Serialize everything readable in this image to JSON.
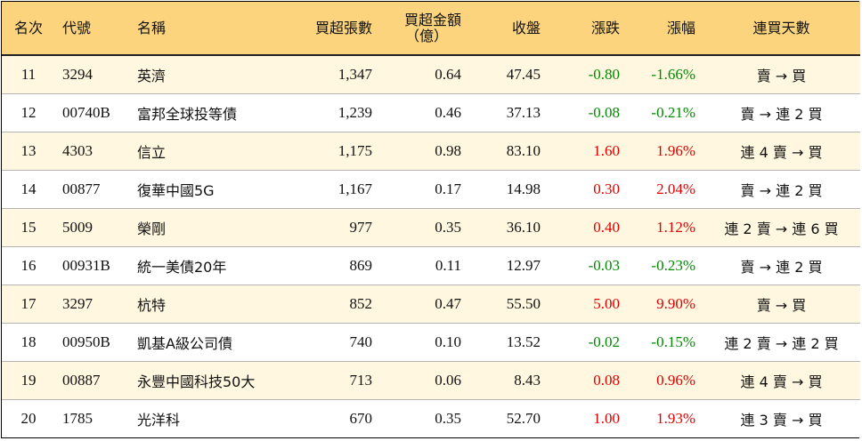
{
  "headers": {
    "rank": "名次",
    "code": "代號",
    "name": "名稱",
    "net_lots": "買超張數",
    "net_amount_l1": "買超金額",
    "net_amount_l2": "（億）",
    "close": "收盤",
    "change": "漲跌",
    "pct": "漲幅",
    "streak": "連買天數"
  },
  "colors": {
    "header_bg": "#fbd47d",
    "row_alt_bg": "#fff7df",
    "up": "#e00000",
    "down": "#008a00"
  },
  "rows": [
    {
      "rank": "11",
      "code": "3294",
      "name": "英濟",
      "lots": "1,347",
      "amount": "0.64",
      "close": "47.45",
      "change": "-0.80",
      "pct": "-1.66%",
      "dir": "neg",
      "streak": "賣 → 買"
    },
    {
      "rank": "12",
      "code": "00740B",
      "name": "富邦全球投等債",
      "lots": "1,239",
      "amount": "0.46",
      "close": "37.13",
      "change": "-0.08",
      "pct": "-0.21%",
      "dir": "neg",
      "streak": "賣 → 連 2 買"
    },
    {
      "rank": "13",
      "code": "4303",
      "name": "信立",
      "lots": "1,175",
      "amount": "0.98",
      "close": "83.10",
      "change": "1.60",
      "pct": "1.96%",
      "dir": "pos",
      "streak": "連 4 賣 → 買"
    },
    {
      "rank": "14",
      "code": "00877",
      "name": "復華中國5G",
      "lots": "1,167",
      "amount": "0.17",
      "close": "14.98",
      "change": "0.30",
      "pct": "2.04%",
      "dir": "pos",
      "streak": "賣 → 連 2 買"
    },
    {
      "rank": "15",
      "code": "5009",
      "name": "榮剛",
      "lots": "977",
      "amount": "0.35",
      "close": "36.10",
      "change": "0.40",
      "pct": "1.12%",
      "dir": "pos",
      "streak": "連 2 賣 → 連 6 買"
    },
    {
      "rank": "16",
      "code": "00931B",
      "name": "統一美債20年",
      "lots": "869",
      "amount": "0.11",
      "close": "12.97",
      "change": "-0.03",
      "pct": "-0.23%",
      "dir": "neg",
      "streak": "賣 → 連 2 買"
    },
    {
      "rank": "17",
      "code": "3297",
      "name": "杭特",
      "lots": "852",
      "amount": "0.47",
      "close": "55.50",
      "change": "5.00",
      "pct": "9.90%",
      "dir": "pos",
      "streak": "賣 → 買"
    },
    {
      "rank": "18",
      "code": "00950B",
      "name": "凱基A級公司債",
      "lots": "740",
      "amount": "0.10",
      "close": "13.52",
      "change": "-0.02",
      "pct": "-0.15%",
      "dir": "neg",
      "streak": "連 2 賣 → 連 2 買"
    },
    {
      "rank": "19",
      "code": "00887",
      "name": "永豐中國科技50大",
      "lots": "713",
      "amount": "0.06",
      "close": "8.43",
      "change": "0.08",
      "pct": "0.96%",
      "dir": "pos",
      "streak": "連 4 賣 → 買"
    },
    {
      "rank": "20",
      "code": "1785",
      "name": "光洋科",
      "lots": "670",
      "amount": "0.35",
      "close": "52.70",
      "change": "1.00",
      "pct": "1.93%",
      "dir": "pos",
      "streak": "連 3 賣 → 買"
    }
  ]
}
